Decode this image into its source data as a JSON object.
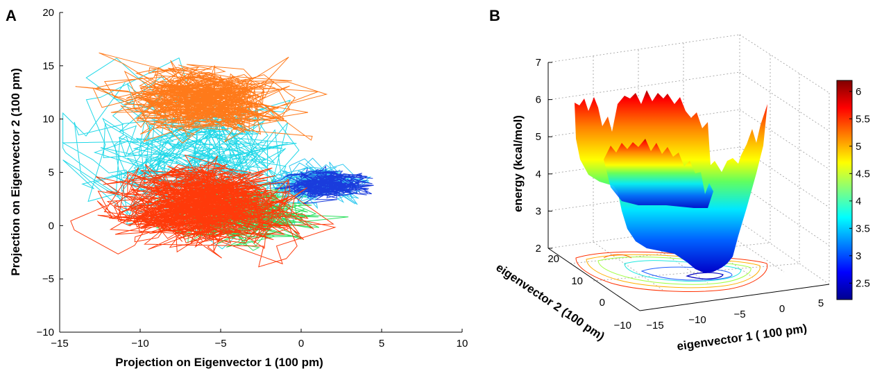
{
  "chart_data": [
    {
      "panel_label": "A",
      "type": "line",
      "xlabel": "Projection on Eigenvector 1 (100 pm)",
      "ylabel": "Projection on Eigenvector 2 (100 pm)",
      "xlim": [
        -15,
        10
      ],
      "ylim": [
        -10,
        20
      ],
      "xticks": [
        "−15",
        "−10",
        "−5",
        "0",
        "5",
        "10"
      ],
      "yticks": [
        "−10",
        "−5",
        "0",
        "5",
        "10",
        "15",
        "20"
      ],
      "grid": false,
      "series": [
        {
          "color": "#ff7a1a",
          "cluster_center": [
            -6,
            12
          ],
          "spread": [
            3.5,
            2.2
          ]
        },
        {
          "color": "#ff3a0a",
          "cluster_center": [
            -6,
            2
          ],
          "spread": [
            4.0,
            2.6
          ]
        },
        {
          "color": "#20d8e8",
          "cluster_center": [
            -7,
            6
          ],
          "spread": [
            4.5,
            4.5
          ]
        },
        {
          "color": "#30e060",
          "cluster_center": [
            -3,
            1
          ],
          "spread": [
            3.0,
            2.0
          ]
        },
        {
          "color": "#1a3cdc",
          "cluster_center": [
            1.5,
            4
          ],
          "spread": [
            2.0,
            1.0
          ]
        },
        {
          "color": "#30c8f0",
          "cluster_center": [
            1,
            4
          ],
          "spread": [
            1.8,
            1.2
          ]
        }
      ]
    },
    {
      "panel_label": "B",
      "type": "surface",
      "xlabel": "eigenvector 1 ( 100 pm)",
      "ylabel": "eigenvector 2 (100 pm)",
      "zlabel": "energy (kcal/mol)",
      "xlim": [
        -15,
        5
      ],
      "ylim": [
        -10,
        20
      ],
      "zlim": [
        2,
        7
      ],
      "xticks": [
        "−15",
        "−10",
        "−5",
        "0",
        "5"
      ],
      "yticks": [
        "−10",
        "0",
        "10",
        "20"
      ],
      "zticks": [
        "2",
        "3",
        "4",
        "5",
        "6",
        "7"
      ],
      "colorbar": {
        "ticks": [
          "2.5",
          "3",
          "3.5",
          "4",
          "4.5",
          "5",
          "5.5",
          "6"
        ],
        "range": [
          2.2,
          6.2
        ],
        "colormap": "jet"
      }
    }
  ]
}
